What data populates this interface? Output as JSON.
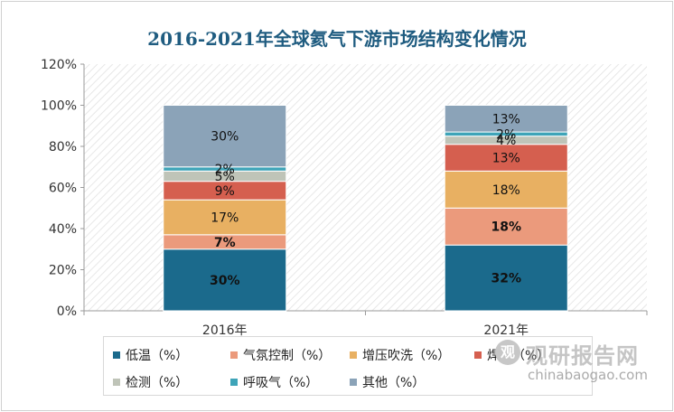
{
  "chart_data": {
    "type": "bar",
    "stacked": true,
    "title": "2016-2021年全球氦气下游市场结构变化情况",
    "categories": [
      "2016年",
      "2021年"
    ],
    "ylim": [
      0,
      1.2
    ],
    "yticks": [
      "0%",
      "20%",
      "40%",
      "60%",
      "80%",
      "100%",
      "120%"
    ],
    "series": [
      {
        "name": "低温（%）",
        "color": "#1b6a8c",
        "values": [
          0.3,
          0.32
        ],
        "labels": [
          "30%",
          "32%"
        ],
        "bold": true,
        "label_color": "#111111"
      },
      {
        "name": "气氛控制（%）",
        "color": "#eb9a7c",
        "values": [
          0.07,
          0.18
        ],
        "labels": [
          "7%",
          "18%"
        ],
        "bold": true,
        "label_color": "#111111"
      },
      {
        "name": "增压吹洗（%）",
        "color": "#e8b062",
        "values": [
          0.17,
          0.18
        ],
        "labels": [
          "17%",
          "18%"
        ],
        "bold": false,
        "label_color": "#111111"
      },
      {
        "name": "焊接（%）",
        "color": "#d55f4f",
        "values": [
          0.09,
          0.13
        ],
        "labels": [
          "9%",
          "13%"
        ],
        "bold": false,
        "label_color": "#111111"
      },
      {
        "name": "检测（%）",
        "color": "#bfc4b8",
        "values": [
          0.05,
          0.04
        ],
        "labels": [
          "5%",
          "4%"
        ],
        "bold": false,
        "label_color": "#111111"
      },
      {
        "name": "呼吸气（%）",
        "color": "#3ea4b8",
        "values": [
          0.02,
          0.02
        ],
        "labels": [
          "2%",
          "2%"
        ],
        "bold": false,
        "label_color": "#111111"
      },
      {
        "name": "其他（%）",
        "color": "#8ba3b8",
        "values": [
          0.3,
          0.13
        ],
        "labels": [
          "30%",
          "13%"
        ],
        "bold": false,
        "label_color": "#111111"
      }
    ],
    "legend_position": "bottom",
    "grid": false
  },
  "watermark": {
    "logo_glyph": "观",
    "cn": "观研报告网",
    "en": "chinabaogao.com"
  }
}
